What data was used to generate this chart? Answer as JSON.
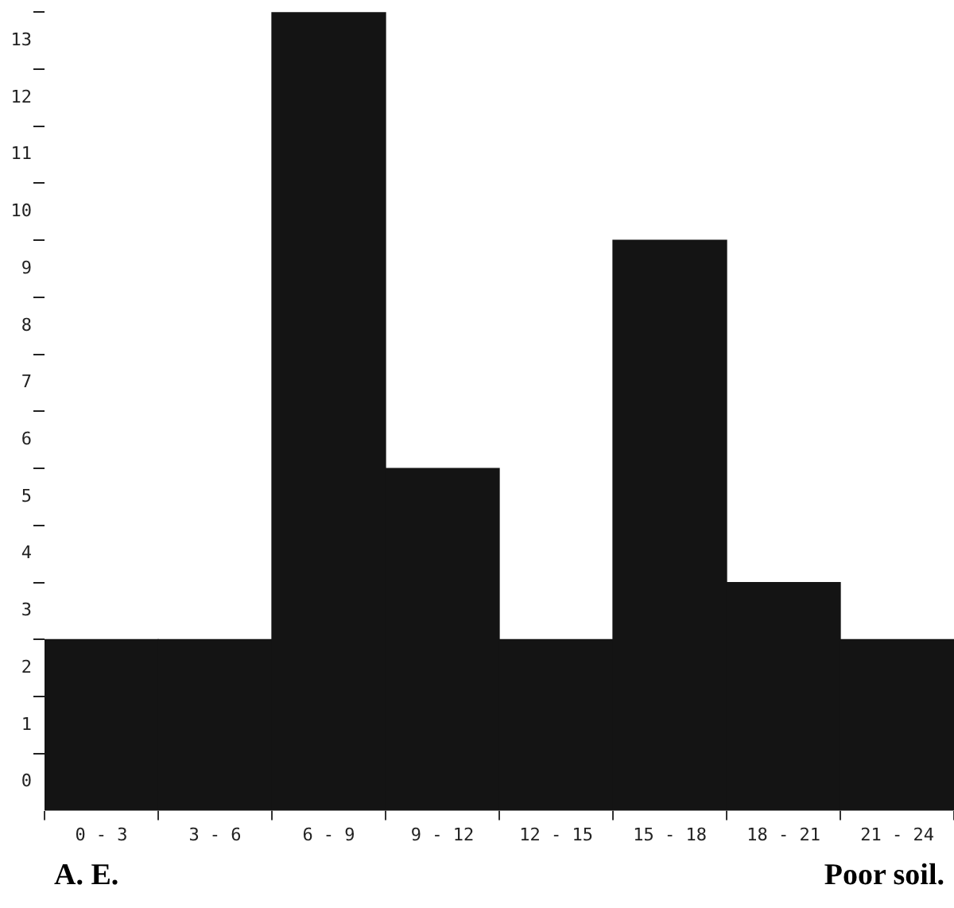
{
  "chart_data": {
    "type": "bar",
    "categories": [
      "0 - 3",
      "3 - 6",
      "6 - 9",
      "9 - 12",
      "12 - 15",
      "15 - 18",
      "18 - 21",
      "21 - 24"
    ],
    "values": [
      3,
      3,
      14,
      6,
      3,
      10,
      4,
      3
    ],
    "color": "#141414",
    "ylim": [
      0,
      14
    ],
    "yticks": [
      {
        "value": 0.5,
        "label": "0"
      },
      {
        "value": 1,
        "label": null
      },
      {
        "value": 1.5,
        "label": "1"
      },
      {
        "value": 2,
        "label": null
      },
      {
        "value": 2.5,
        "label": "2"
      },
      {
        "value": 3,
        "label": null
      },
      {
        "value": 3.5,
        "label": "3"
      },
      {
        "value": 4,
        "label": null
      },
      {
        "value": 4.5,
        "label": "4"
      },
      {
        "value": 5,
        "label": null
      },
      {
        "value": 5.5,
        "label": "5"
      },
      {
        "value": 6,
        "label": null
      },
      {
        "value": 6.5,
        "label": "6"
      },
      {
        "value": 7,
        "label": null
      },
      {
        "value": 7.5,
        "label": "7"
      },
      {
        "value": 8,
        "label": null
      },
      {
        "value": 8.5,
        "label": "8"
      },
      {
        "value": 9,
        "label": null
      },
      {
        "value": 9.5,
        "label": "9"
      },
      {
        "value": 10,
        "label": null
      },
      {
        "value": 10.5,
        "label": "10"
      },
      {
        "value": 11,
        "label": null
      },
      {
        "value": 11.5,
        "label": "11"
      },
      {
        "value": 12,
        "label": null
      },
      {
        "value": 12.5,
        "label": "12"
      },
      {
        "value": 13,
        "label": null
      },
      {
        "value": 13.5,
        "label": "13"
      },
      {
        "value": 14,
        "label": null
      }
    ],
    "grid": false,
    "legend": false,
    "annotations": [
      "A. E.",
      "Poor soil."
    ]
  }
}
